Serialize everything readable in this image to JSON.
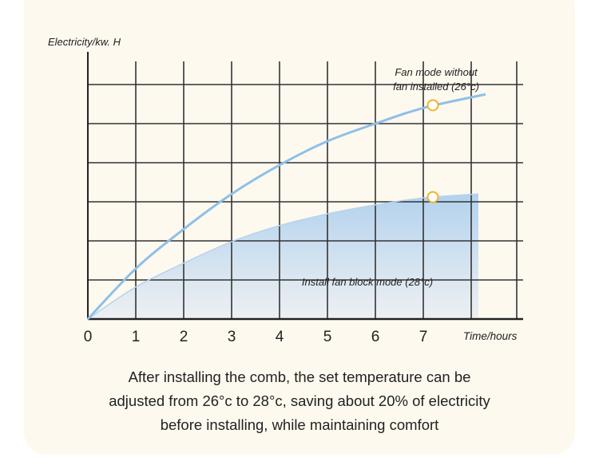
{
  "chart_data": {
    "type": "line",
    "ylabel": "Electricity/kw. H",
    "xlabel": "Time/hours",
    "x_ticks": [
      "0",
      "1",
      "2",
      "3",
      "4",
      "5",
      "6",
      "7"
    ],
    "xlim": [
      0,
      9
    ],
    "ylim": [
      0,
      6
    ],
    "grid": true,
    "series": [
      {
        "name": "Fan mode without fan installed (26°c)",
        "label_lines": [
          "Fan mode without",
          "fan installed (26°c)"
        ],
        "color": "#8ec0e8",
        "x": [
          0,
          1,
          2,
          3,
          4,
          5,
          6,
          7,
          8.3
        ],
        "y": [
          0,
          1.29,
          2.3,
          3.2,
          3.94,
          4.55,
          5.0,
          5.4,
          5.75
        ],
        "marker": {
          "x": 7.2,
          "y": 5.47
        }
      },
      {
        "name": "Install fan block mode (28°c)",
        "color": "#b5d4ee",
        "fill": true,
        "x": [
          0,
          1,
          2,
          3,
          4,
          5,
          6,
          7,
          8.15
        ],
        "y": [
          0,
          0.82,
          1.43,
          1.98,
          2.39,
          2.69,
          2.92,
          3.1,
          3.2
        ],
        "marker": {
          "x": 7.2,
          "y": 3.12
        }
      }
    ],
    "marker_color": "#f0b428"
  },
  "caption": [
    "After installing the comb, the set temperature can be",
    "adjusted from 26°c to 28°c, saving about 20% of electricity",
    "before installing, while maintaining comfort"
  ]
}
